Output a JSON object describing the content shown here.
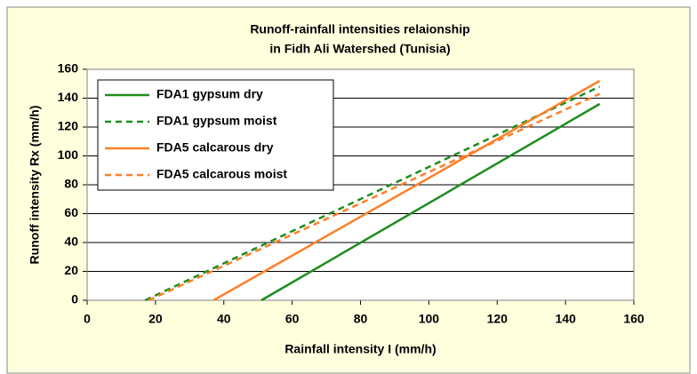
{
  "chart_data": {
    "type": "line",
    "title": [
      "Runoff-rainfall intensities relaionship",
      "in Fidh Ali Watershed (Tunisia)"
    ],
    "xlabel": "Rainfall intensity I (mm/h)",
    "ylabel": "Runoff intensity Rx (mm/h)",
    "xlim": [
      0,
      160
    ],
    "xticks": [
      0,
      20,
      40,
      60,
      80,
      100,
      120,
      140,
      160
    ],
    "ylim": [
      0,
      160
    ],
    "yticks": [
      0,
      20,
      40,
      60,
      80,
      100,
      120,
      140,
      160
    ],
    "grid": true,
    "legend": "upper left",
    "series": [
      {
        "name": "FDA1 gypsum dry",
        "color": "#1e8c1e",
        "dash": false,
        "x": [
          51,
          150
        ],
        "values": [
          0,
          136
        ]
      },
      {
        "name": "FDA1 gypsum moist",
        "color": "#1e8c1e",
        "dash": true,
        "x": [
          17,
          150
        ],
        "values": [
          0,
          148
        ]
      },
      {
        "name": "FDA5 calcarous dry",
        "color": "#ff7f27",
        "dash": false,
        "x": [
          37,
          150
        ],
        "values": [
          0,
          152
        ]
      },
      {
        "name": "FDA5 calcarous moist",
        "color": "#ff7f27",
        "dash": true,
        "x": [
          18,
          150
        ],
        "values": [
          0,
          143
        ]
      }
    ]
  }
}
